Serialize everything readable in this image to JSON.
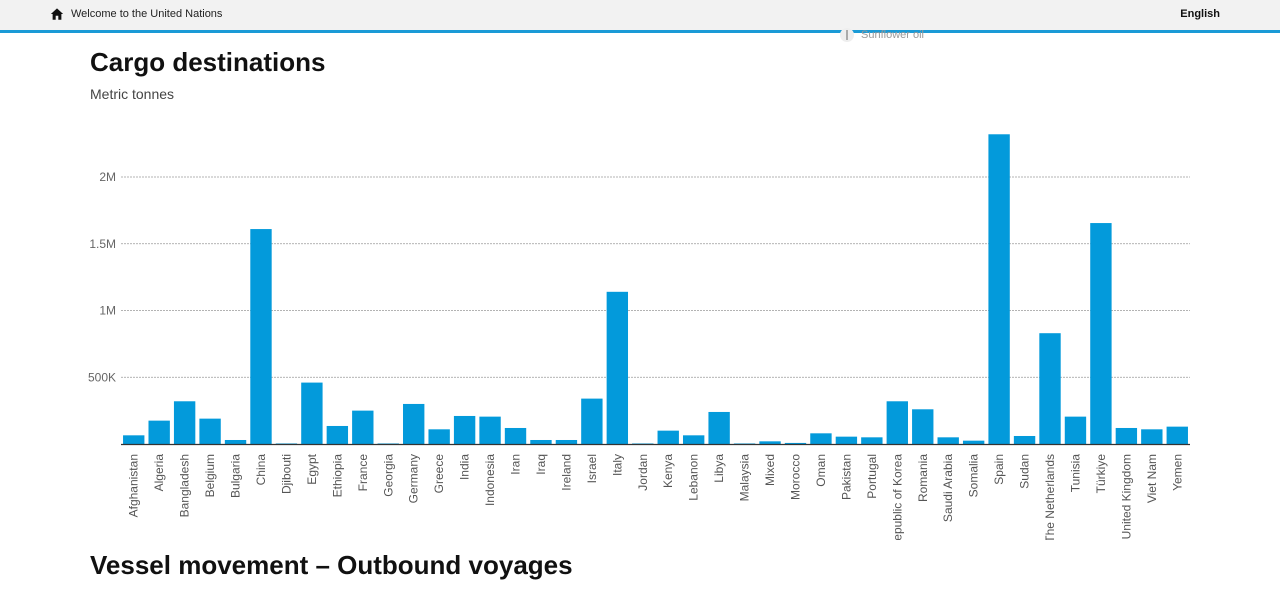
{
  "header": {
    "home_label": "Welcome to the United Nations",
    "language": "English"
  },
  "legend_peek": "Sunflower oil",
  "section_title": "Vessel movement – Outbound voyages",
  "chart_data": {
    "type": "bar",
    "title": "Cargo destinations",
    "subtitle": "Metric tonnes",
    "xlabel": "",
    "ylabel": "",
    "ylim": [
      0,
      2500000
    ],
    "yticks": [
      500000,
      1000000,
      1500000,
      2000000
    ],
    "ytick_labels": [
      "500K",
      "1M",
      "1.5M",
      "2M"
    ],
    "grid": true,
    "bar_color": "#039adb",
    "categories": [
      "Afghanistan",
      "Algeria",
      "Bangladesh",
      "Belgium",
      "Bulgaria",
      "China",
      "Djibouti",
      "Egypt",
      "Ethiopia",
      "France",
      "Georgia",
      "Germany",
      "Greece",
      "India",
      "Indonesia",
      "Iran",
      "Iraq",
      "Ireland",
      "Israel",
      "Italy",
      "Jordan",
      "Kenya",
      "Lebanon",
      "Libya",
      "Malaysia",
      "Mixed",
      "Morocco",
      "Oman",
      "Pakistan",
      "Portugal",
      "Republic of Korea",
      "Romania",
      "Saudi Arabia",
      "Somalia",
      "Spain",
      "Sudan",
      "The Netherlands",
      "Tunisia",
      "Türkiye",
      "United Kingdom",
      "Viet Nam",
      "Yemen"
    ],
    "values": [
      65000,
      175000,
      320000,
      190000,
      30000,
      1610000,
      4000,
      460000,
      135000,
      250000,
      4000,
      300000,
      110000,
      210000,
      205000,
      120000,
      30000,
      30000,
      340000,
      1140000,
      4000,
      100000,
      65000,
      240000,
      4000,
      20000,
      8000,
      80000,
      55000,
      50000,
      320000,
      260000,
      50000,
      25000,
      2320000,
      60000,
      830000,
      205000,
      1655000,
      120000,
      110000,
      130000
    ]
  }
}
